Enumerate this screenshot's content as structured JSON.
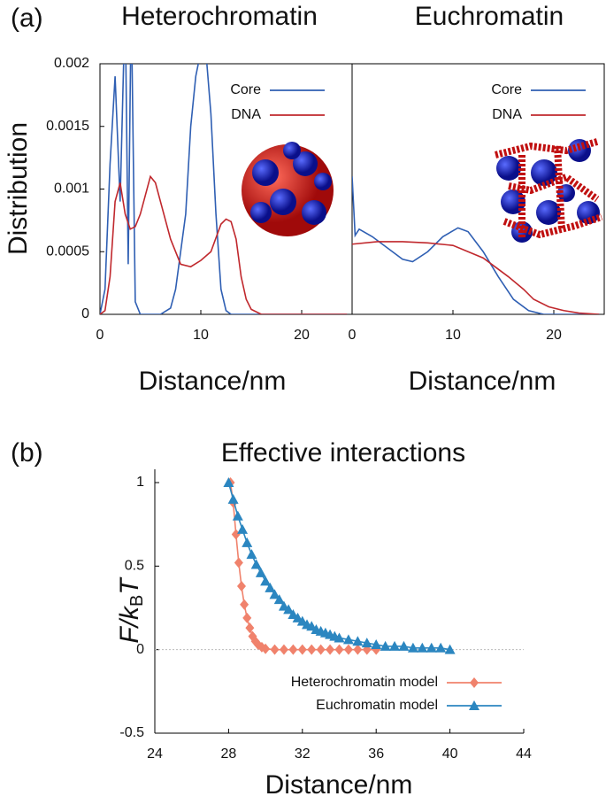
{
  "panel_labels": [
    "(a)",
    "(b)"
  ],
  "chart_data": [
    {
      "type": "line",
      "title": "Heterochromatin",
      "xlabel": "Distance/nm",
      "ylabel": "Distribution",
      "xlim": [
        0,
        25
      ],
      "ylim": [
        0,
        0.002
      ],
      "xticks": [
        0,
        10,
        20
      ],
      "yticks": [
        0,
        0.0005,
        0.001,
        0.0015,
        0.002
      ],
      "legend": "upper right",
      "series": [
        {
          "name": "Core",
          "color": "#2f5fb3",
          "x": [
            0,
            0.5,
            1,
            1.5,
            2,
            2.5,
            2.8,
            3.1,
            3.5,
            4,
            5,
            6,
            7,
            7.5,
            8,
            8.5,
            9,
            9.5,
            10,
            10.5,
            11,
            11.5,
            12,
            12.5,
            13,
            15,
            20,
            24.5
          ],
          "values": [
            0,
            0.0002,
            0.0012,
            0.0019,
            0.0009,
            0.0025,
            0.0004,
            0.0025,
            0.0001,
            0,
            0,
            0,
            5e-05,
            0.0002,
            0.0005,
            0.0008,
            0.0015,
            0.0019,
            0.0021,
            0.0021,
            0.0016,
            0.0008,
            0.0002,
            3e-05,
            0,
            0,
            0,
            0
          ]
        },
        {
          "name": "DNA",
          "color": "#c0282d",
          "x": [
            0,
            0.5,
            1,
            1.5,
            2,
            2.5,
            3,
            3.5,
            4,
            4.5,
            5,
            5.5,
            6,
            7,
            8,
            9,
            10,
            11,
            12,
            12.5,
            13,
            13.5,
            14,
            14.5,
            15,
            16,
            20,
            24.5
          ],
          "values": [
            0,
            3e-05,
            0.0003,
            0.0009,
            0.00105,
            0.0008,
            0.00068,
            0.0007,
            0.0008,
            0.00095,
            0.0011,
            0.00105,
            0.0009,
            0.0006,
            0.0004,
            0.00038,
            0.00043,
            0.0005,
            0.00072,
            0.00076,
            0.00074,
            0.0006,
            0.0003,
            0.00012,
            4e-05,
            0,
            0,
            0
          ]
        }
      ]
    },
    {
      "type": "line",
      "title": "Euchromatin",
      "xlabel": "Distance/nm",
      "xlim": [
        0,
        25
      ],
      "ylim": [
        0,
        0.002
      ],
      "xticks": [
        0,
        10,
        20
      ],
      "legend": "upper right",
      "series": [
        {
          "name": "Core",
          "color": "#2f5fb3",
          "x": [
            0,
            0.3,
            0.7,
            2,
            4,
            5,
            6,
            7.5,
            9,
            10.5,
            11.5,
            13,
            14.5,
            16,
            17.5,
            19,
            24.5
          ],
          "values": [
            0.0011,
            0.00063,
            0.00068,
            0.00062,
            0.0005,
            0.00044,
            0.00042,
            0.0005,
            0.00062,
            0.00069,
            0.00066,
            0.0005,
            0.0003,
            0.00012,
            3e-05,
            0,
            0
          ]
        },
        {
          "name": "DNA",
          "color": "#c0282d",
          "x": [
            0,
            2.5,
            5,
            7.5,
            10,
            11.5,
            13,
            14.5,
            15.5,
            17,
            18,
            19.5,
            21,
            22.5,
            24.5
          ],
          "values": [
            0.00056,
            0.00058,
            0.00058,
            0.00057,
            0.00055,
            0.0005,
            0.00045,
            0.00036,
            0.0003,
            0.0002,
            0.00012,
            6e-05,
            3e-05,
            1e-05,
            0
          ]
        }
      ]
    },
    {
      "type": "markerline",
      "title": "Effective interactions",
      "xlabel": "Distance/nm",
      "ylabel": [
        "F/k",
        "B",
        "T"
      ],
      "xlim": [
        24,
        44
      ],
      "ylim": [
        -0.5,
        1
      ],
      "xticks": [
        24,
        28,
        32,
        36,
        40,
        44
      ],
      "yticks": [
        -0.5,
        0,
        0.5,
        1
      ],
      "zero_line": true,
      "legend": "lower right",
      "series": [
        {
          "name": "Heterochromatin model",
          "color": "#f0826c",
          "marker": "diamond",
          "x": [
            28.1,
            28.25,
            28.4,
            28.55,
            28.7,
            28.85,
            29,
            29.15,
            29.3,
            29.45,
            29.6,
            29.8,
            30,
            30.5,
            31,
            31.5,
            32,
            32.5,
            33,
            33.5,
            34,
            34.5,
            35,
            35.5,
            36
          ],
          "values": [
            1,
            0.88,
            0.69,
            0.52,
            0.38,
            0.27,
            0.19,
            0.13,
            0.08,
            0.05,
            0.03,
            0.015,
            0.005,
            0,
            0,
            0,
            0,
            0,
            0,
            0,
            0,
            0,
            0,
            0,
            0
          ]
        },
        {
          "name": "Euchromatin model",
          "color": "#2b86c0",
          "marker": "triangle",
          "x": [
            28,
            28.25,
            28.5,
            28.75,
            29,
            29.25,
            29.5,
            29.75,
            30,
            30.25,
            30.5,
            30.75,
            31,
            31.25,
            31.5,
            31.75,
            32,
            32.25,
            32.5,
            32.75,
            33,
            33.25,
            33.5,
            33.75,
            34,
            34.5,
            35,
            35.5,
            36,
            36.5,
            37,
            37.5,
            38,
            38.5,
            39,
            39.5,
            40
          ],
          "values": [
            1,
            0.9,
            0.8,
            0.72,
            0.64,
            0.57,
            0.51,
            0.46,
            0.41,
            0.37,
            0.33,
            0.3,
            0.26,
            0.24,
            0.21,
            0.19,
            0.17,
            0.15,
            0.14,
            0.12,
            0.11,
            0.1,
            0.09,
            0.08,
            0.07,
            0.06,
            0.05,
            0.04,
            0.03,
            0.02,
            0.02,
            0.02,
            0.01,
            0.01,
            0.01,
            0.01,
            0
          ]
        }
      ]
    }
  ]
}
